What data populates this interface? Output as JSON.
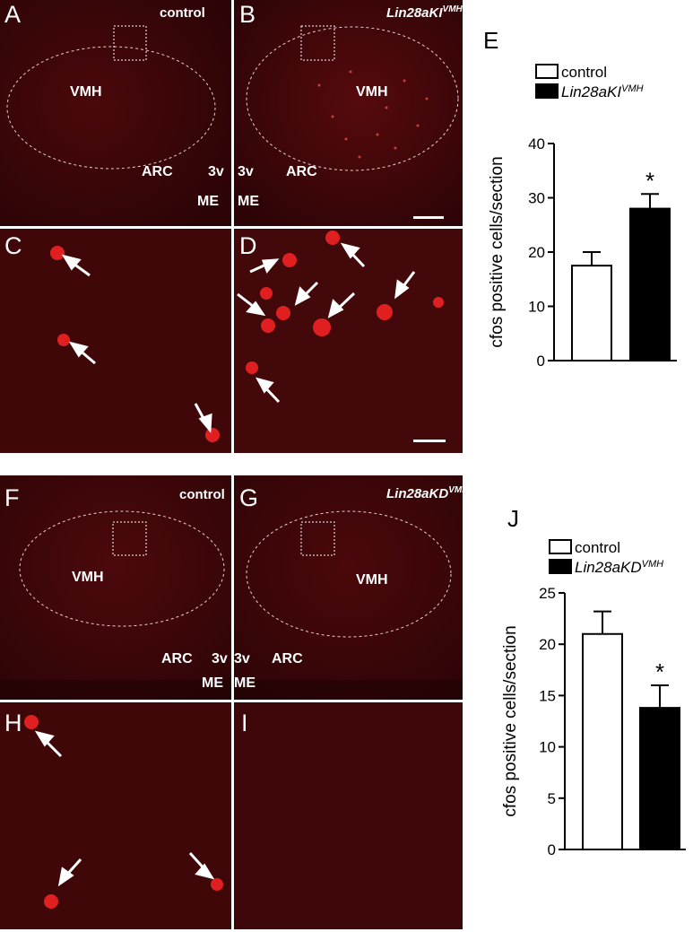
{
  "panels": {
    "A": {
      "letter": "A",
      "condition": "control"
    },
    "B": {
      "letter": "B",
      "condition_main": "Lin28aKI",
      "condition_sup": "VMH"
    },
    "C": {
      "letter": "C"
    },
    "D": {
      "letter": "D"
    },
    "F": {
      "letter": "F",
      "condition": "control"
    },
    "G": {
      "letter": "G",
      "condition_main": "Lin28aKD",
      "condition_sup": "VMH"
    },
    "H": {
      "letter": "H"
    },
    "I": {
      "letter": "I"
    }
  },
  "regions": {
    "vmh": "VMH",
    "arc": "ARC",
    "third_ventricle": "3v",
    "me": "ME"
  },
  "colors": {
    "tissue": "#3a0608",
    "cell": "#e02020",
    "bar_control": "#ffffff",
    "bar_treated": "#000000"
  },
  "chart_data": [
    {
      "panel": "E",
      "type": "bar",
      "categories": [
        "control",
        "Lin28aKI^VMH"
      ],
      "legend": [
        {
          "main": "control",
          "sup": ""
        },
        {
          "main": "Lin28aKI",
          "sup": "VMH"
        }
      ],
      "values": [
        17.5,
        28
      ],
      "errors": [
        2.5,
        2.7
      ],
      "significance": [
        "",
        "*"
      ],
      "ylabel": "cfos positive cells/section",
      "yticks": [
        0,
        10,
        20,
        30,
        40
      ],
      "ylim": [
        0,
        40
      ]
    },
    {
      "panel": "J",
      "type": "bar",
      "categories": [
        "control",
        "Lin28aKD^VMH"
      ],
      "legend": [
        {
          "main": "control",
          "sup": ""
        },
        {
          "main": "Lin28aKD",
          "sup": "VMH"
        }
      ],
      "values": [
        21,
        13.8
      ],
      "errors": [
        2.2,
        2.2
      ],
      "significance": [
        "",
        "*"
      ],
      "ylabel": "cfos positive cells/section",
      "yticks": [
        0,
        5,
        10,
        15,
        20,
        25
      ],
      "ylim": [
        0,
        25
      ]
    }
  ]
}
